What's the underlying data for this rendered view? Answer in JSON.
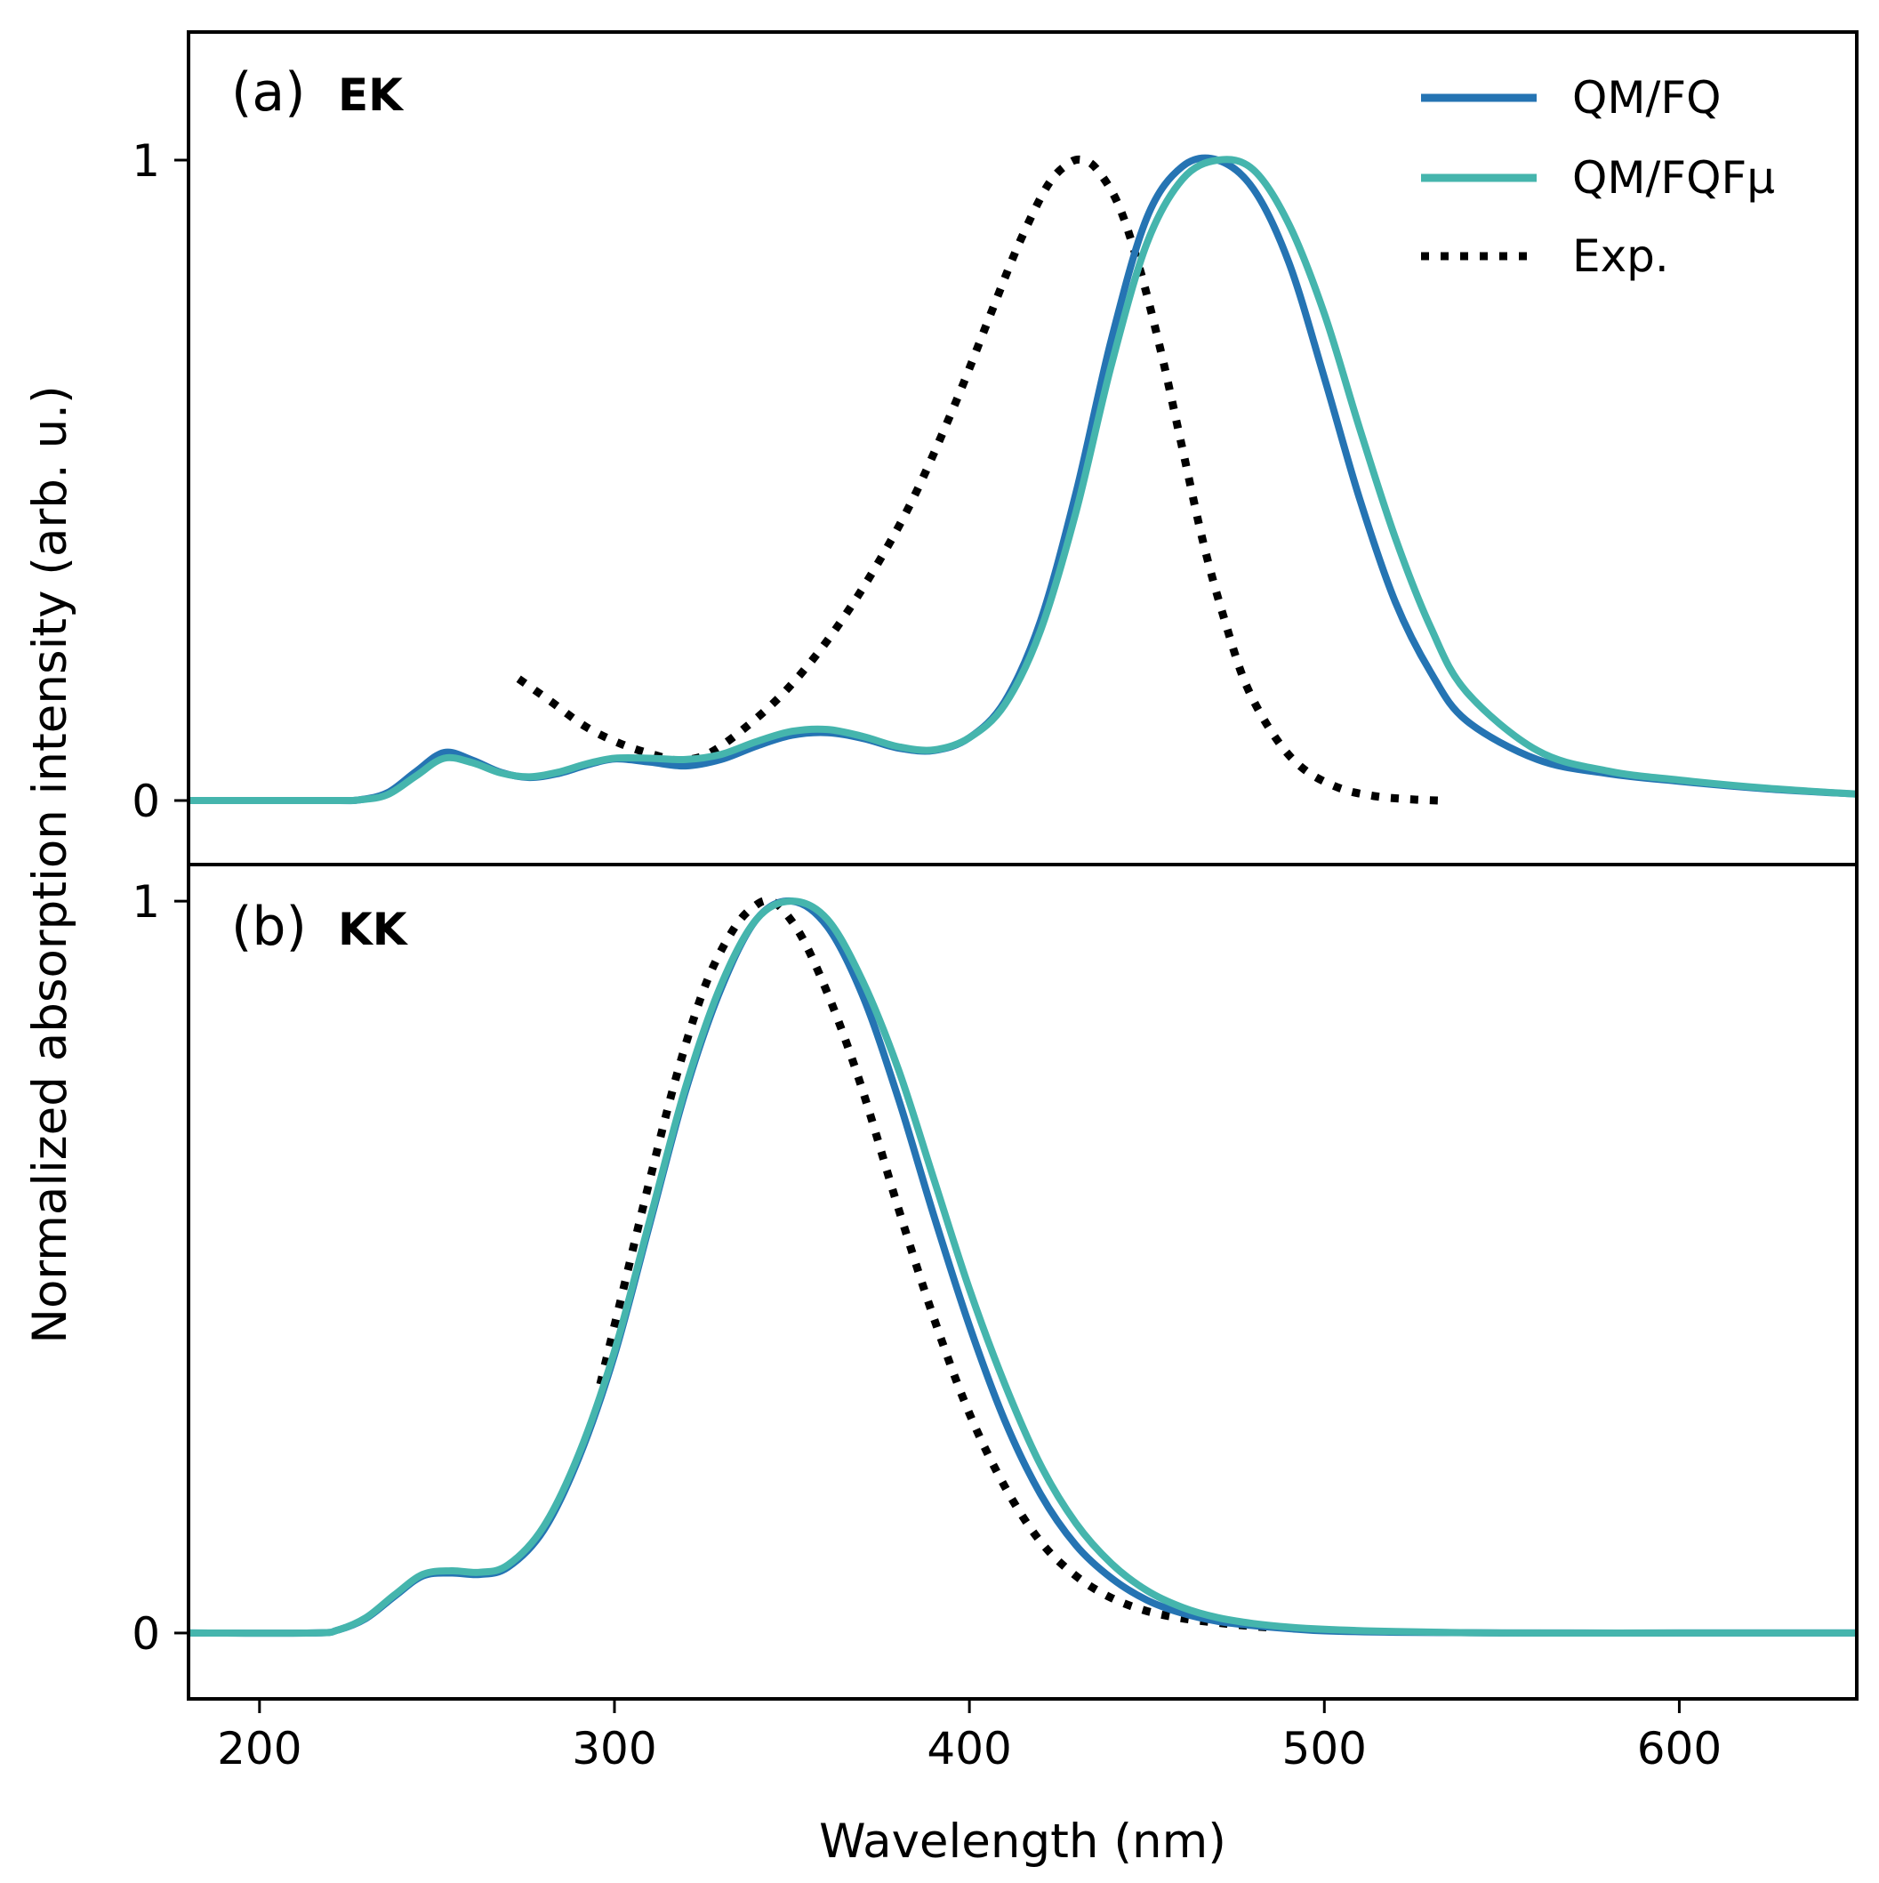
{
  "chart_data": {
    "type": "line",
    "xlabel": "Wavelength (nm)",
    "ylabel": "Normalized absorption intensity (arb. u.)",
    "xlim": [
      180,
      650
    ],
    "x_ticks": [
      "200",
      "300",
      "400",
      "500",
      "600"
    ],
    "x_tick_values": [
      200,
      300,
      400,
      500,
      600
    ],
    "colors": {
      "QM/FQ": "#2574b3",
      "QM/FQFμ": "#45b5ad",
      "Exp.": "#000000"
    },
    "legend": {
      "position": "top-right",
      "entries": [
        {
          "name": "QM/FQ",
          "style": "solid"
        },
        {
          "name": "QM/FQFμ",
          "style": "solid"
        },
        {
          "name": "Exp.",
          "style": "dotted"
        }
      ]
    },
    "panels": [
      {
        "tag": "(a)",
        "name": "EK",
        "ylim": [
          -0.1,
          1.2
        ],
        "y_ticks": [
          "0",
          "1"
        ],
        "y_tick_values": [
          0,
          1
        ],
        "series": [
          {
            "name": "QM/FQ",
            "style": "solid",
            "x": [
              180,
              220,
              228,
              236,
              244,
              252,
              260,
              268,
              276,
              284,
              292,
              300,
              310,
              320,
              330,
              340,
              350,
              360,
              370,
              380,
              390,
              400,
              410,
              420,
              430,
              440,
              450,
              460,
              470,
              480,
              490,
              500,
              510,
              520,
              530,
              540,
              560,
              580,
              600,
              625,
              650
            ],
            "y": [
              0,
              0,
              0.001,
              0.012,
              0.045,
              0.075,
              0.063,
              0.044,
              0.036,
              0.042,
              0.055,
              0.065,
              0.06,
              0.054,
              0.064,
              0.085,
              0.102,
              0.106,
              0.097,
              0.082,
              0.078,
              0.098,
              0.155,
              0.28,
              0.48,
              0.72,
              0.91,
              0.99,
              1.0,
              0.955,
              0.84,
              0.66,
              0.47,
              0.31,
              0.2,
              0.125,
              0.064,
              0.042,
              0.03,
              0.018,
              0.01
            ]
          },
          {
            "name": "QM/FQFμ",
            "style": "solid",
            "x": [
              180,
              220,
              228,
              236,
              244,
              252,
              260,
              268,
              276,
              284,
              292,
              300,
              310,
              320,
              330,
              340,
              350,
              360,
              370,
              380,
              390,
              400,
              410,
              420,
              430,
              440,
              450,
              460,
              470,
              480,
              490,
              500,
              510,
              520,
              530,
              540,
              560,
              580,
              600,
              625,
              650
            ],
            "y": [
              0,
              0,
              0.001,
              0.009,
              0.038,
              0.066,
              0.059,
              0.043,
              0.037,
              0.044,
              0.057,
              0.066,
              0.066,
              0.064,
              0.072,
              0.092,
              0.108,
              0.111,
              0.1,
              0.084,
              0.079,
              0.098,
              0.15,
              0.265,
              0.45,
              0.68,
              0.87,
              0.97,
              1.0,
              0.985,
              0.9,
              0.76,
              0.58,
              0.41,
              0.27,
              0.17,
              0.078,
              0.046,
              0.032,
              0.019,
              0.01
            ]
          },
          {
            "name": "Exp.",
            "style": "dotted",
            "x": [
              273,
              282,
              292,
              302,
              312,
              318,
              326,
              336,
              348,
              360,
              372,
              384,
              396,
              406,
              414,
              422,
              428,
              432,
              436,
              442,
              448,
              454,
              460,
              466,
              472,
              478,
              486,
              494,
              504,
              514,
              524,
              532
            ],
            "y": [
              0.19,
              0.155,
              0.115,
              0.088,
              0.07,
              0.063,
              0.072,
              0.11,
              0.17,
              0.25,
              0.35,
              0.47,
              0.62,
              0.76,
              0.87,
              0.96,
              0.995,
              1.0,
              0.985,
              0.93,
              0.83,
              0.7,
              0.55,
              0.4,
              0.28,
              0.18,
              0.1,
              0.05,
              0.02,
              0.007,
              0.002,
              0
            ]
          }
        ]
      },
      {
        "tag": "(b)",
        "name": "KK",
        "ylim": [
          -0.09,
          1.05
        ],
        "y_ticks": [
          "0",
          "1"
        ],
        "y_tick_values": [
          0,
          1
        ],
        "series": [
          {
            "name": "QM/FQ",
            "style": "solid",
            "x": [
              180,
              215,
              222,
              230,
              238,
              246,
              254,
              262,
              270,
              280,
              290,
              300,
              310,
              320,
              330,
              340,
              350,
              360,
              370,
              380,
              390,
              400,
              410,
              420,
              430,
              440,
              450,
              460,
              470,
              480,
              490,
              500,
              520,
              550,
              600,
              650
            ],
            "y": [
              0,
              0,
              0.004,
              0.02,
              0.05,
              0.078,
              0.082,
              0.08,
              0.09,
              0.14,
              0.24,
              0.38,
              0.56,
              0.74,
              0.88,
              0.975,
              1.0,
              0.965,
              0.87,
              0.73,
              0.57,
              0.42,
              0.29,
              0.19,
              0.12,
              0.075,
              0.045,
              0.027,
              0.016,
              0.01,
              0.006,
              0.003,
              0.001,
              0,
              0,
              0
            ]
          },
          {
            "name": "QM/FQFμ",
            "style": "solid",
            "x": [
              180,
              215,
              222,
              230,
              238,
              246,
              254,
              262,
              270,
              280,
              290,
              300,
              310,
              320,
              330,
              340,
              350,
              360,
              370,
              380,
              390,
              400,
              410,
              420,
              430,
              440,
              450,
              460,
              470,
              480,
              490,
              500,
              520,
              550,
              600,
              650
            ],
            "y": [
              0,
              0,
              0.004,
              0.021,
              0.052,
              0.08,
              0.085,
              0.083,
              0.093,
              0.145,
              0.245,
              0.385,
              0.565,
              0.745,
              0.885,
              0.975,
              1.0,
              0.975,
              0.89,
              0.77,
              0.62,
              0.47,
              0.34,
              0.23,
              0.15,
              0.095,
              0.058,
              0.035,
              0.021,
              0.013,
              0.008,
              0.005,
              0.002,
              0,
              0,
              0
            ]
          },
          {
            "name": "Exp.",
            "style": "dotted",
            "x": [
              296,
              302,
              310,
              318,
              326,
              334,
              340,
              344,
              348,
              354,
              362,
              370,
              380,
              390,
              400,
              410,
              420,
              430,
              440,
              450,
              460,
              470,
              478,
              486
            ],
            "y": [
              0.34,
              0.46,
              0.62,
              0.77,
              0.89,
              0.965,
              0.995,
              1.0,
              0.985,
              0.94,
              0.85,
              0.74,
              0.58,
              0.43,
              0.3,
              0.2,
              0.125,
              0.078,
              0.048,
              0.03,
              0.02,
              0.014,
              0.01,
              0.007
            ]
          }
        ]
      }
    ]
  }
}
